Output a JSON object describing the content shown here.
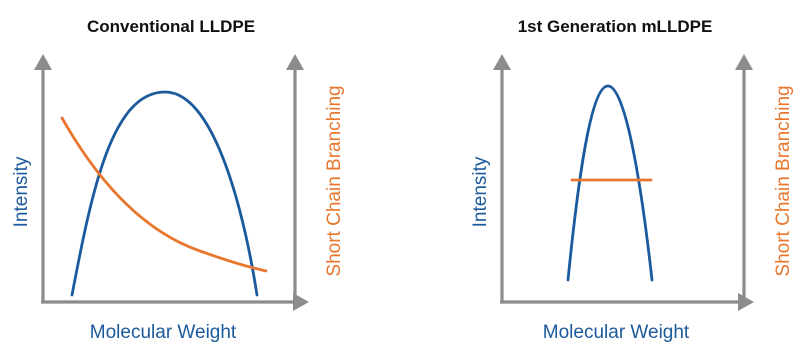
{
  "colors": {
    "intensity": "#1b5a9c",
    "branching": "#e8762d",
    "axis": "#8c8c8c",
    "title": "#111111"
  },
  "panels": [
    {
      "title": "Conventional LLDPE",
      "xlabel": "Molecular Weight",
      "ylabel_left": "Intensity",
      "ylabel_right": "Short Chain Branching",
      "intensity_shape": "broad distribution",
      "branching_shape": "decreasing with molecular weight"
    },
    {
      "title": "1st Generation mLLDPE",
      "xlabel": "Molecular Weight",
      "ylabel_left": "Intensity",
      "ylabel_right": "Short Chain Branching",
      "intensity_shape": "narrow distribution",
      "branching_shape": "constant across molecular weight"
    }
  ]
}
